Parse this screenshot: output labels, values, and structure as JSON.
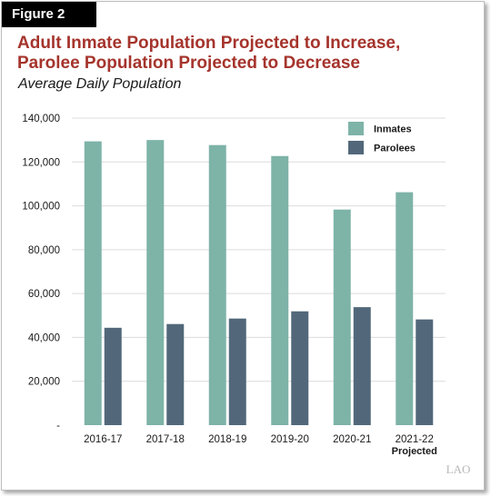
{
  "figure_label": "Figure 2",
  "chart_data": {
    "type": "bar",
    "title_lines": [
      "Adult Inmate Population Projected to Increase,",
      "Parolee Population Projected to Decrease"
    ],
    "subtitle": "Average Daily Population",
    "categories": [
      "2016-17",
      "2017-18",
      "2018-19",
      "2019-20",
      "2020-21",
      "2021-22"
    ],
    "category_notes": [
      "",
      "",
      "",
      "",
      "",
      "Projected"
    ],
    "series": [
      {
        "name": "Inmates",
        "color": "#7eb3a8",
        "values": [
          129400,
          130000,
          127700,
          122700,
          98300,
          106200
        ]
      },
      {
        "name": "Parolees",
        "color": "#52687a",
        "values": [
          44400,
          46100,
          48600,
          51900,
          53800,
          48200
        ]
      }
    ],
    "ylim": [
      0,
      140000
    ],
    "yticks": [
      0,
      20000,
      40000,
      60000,
      80000,
      100000,
      120000,
      140000
    ],
    "ytick_labels": [
      "-",
      "20,000",
      "40,000",
      "60,000",
      "80,000",
      "100,000",
      "120,000",
      "140,000"
    ],
    "grid": true,
    "legend_position": "top-right"
  },
  "logo_text": "LAO"
}
